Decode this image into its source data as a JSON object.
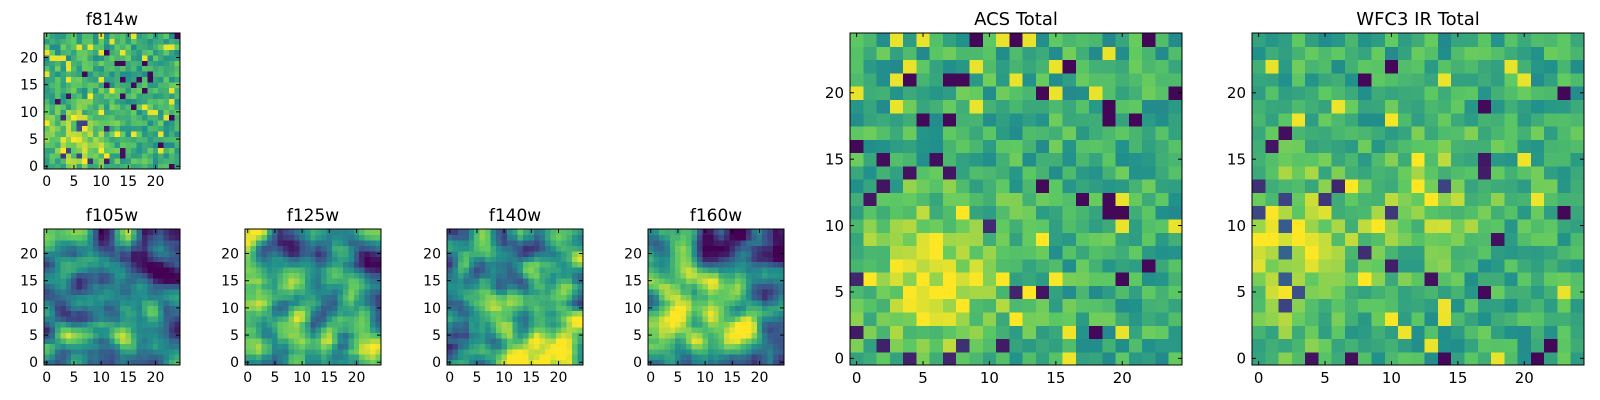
{
  "figure_name": "viridis-pixel-stamps",
  "colormap": [
    "#440154",
    "#3b528b",
    "#21918c",
    "#5ec962",
    "#fde725"
  ],
  "chart_data": [
    {
      "type": "heatmap",
      "title": "f814w",
      "grid_size": 25,
      "x_ticks": [
        "0",
        "5",
        "10",
        "15",
        "20"
      ],
      "y_ticks": [
        "0",
        "5",
        "10",
        "15",
        "20"
      ],
      "xlim": [
        0,
        25
      ],
      "ylim": [
        0,
        25
      ],
      "value_range": [
        0,
        1
      ],
      "texture": "noisy",
      "seed": 11,
      "blobs": [
        {
          "x": 6,
          "y": 5,
          "r": 4,
          "amp": 0.25
        }
      ]
    },
    {
      "type": "heatmap",
      "title": "f105w",
      "grid_size": 25,
      "x_ticks": [
        "0",
        "5",
        "10",
        "15",
        "20"
      ],
      "y_ticks": [
        "0",
        "5",
        "10",
        "15",
        "20"
      ],
      "xlim": [
        0,
        25
      ],
      "ylim": [
        0,
        25
      ],
      "value_range": [
        0,
        1
      ],
      "texture": "smooth",
      "seed": 23,
      "blobs": [
        {
          "x": 10,
          "y": 6,
          "r": 6,
          "amp": 0.2
        },
        {
          "x": 19,
          "y": 20,
          "r": 4,
          "amp": -0.25
        }
      ]
    },
    {
      "type": "heatmap",
      "title": "f125w",
      "grid_size": 25,
      "x_ticks": [
        "0",
        "5",
        "10",
        "15",
        "20"
      ],
      "y_ticks": [
        "0",
        "5",
        "10",
        "15",
        "20"
      ],
      "xlim": [
        0,
        25
      ],
      "ylim": [
        0,
        25
      ],
      "value_range": [
        0,
        1
      ],
      "texture": "smooth",
      "seed": 37,
      "blobs": [
        {
          "x": 8,
          "y": 3,
          "r": 5,
          "amp": 0.25
        },
        {
          "x": 20,
          "y": 3,
          "r": 4,
          "amp": 0.2
        }
      ]
    },
    {
      "type": "heatmap",
      "title": "f140w",
      "grid_size": 25,
      "x_ticks": [
        "0",
        "5",
        "10",
        "15",
        "20"
      ],
      "y_ticks": [
        "0",
        "5",
        "10",
        "15",
        "20"
      ],
      "xlim": [
        0,
        25
      ],
      "ylim": [
        0,
        25
      ],
      "value_range": [
        0,
        1
      ],
      "texture": "smooth",
      "seed": 41,
      "blobs": [
        {
          "x": 12,
          "y": 6,
          "r": 7,
          "amp": 0.3
        },
        {
          "x": 20,
          "y": 4,
          "r": 5,
          "amp": 0.25
        }
      ]
    },
    {
      "type": "heatmap",
      "title": "f160w",
      "grid_size": 25,
      "x_ticks": [
        "0",
        "5",
        "10",
        "15",
        "20"
      ],
      "y_ticks": [
        "0",
        "5",
        "10",
        "15",
        "20"
      ],
      "xlim": [
        0,
        25
      ],
      "ylim": [
        0,
        25
      ],
      "value_range": [
        0,
        1
      ],
      "texture": "smooth",
      "seed": 53,
      "blobs": [
        {
          "x": 13,
          "y": 8,
          "r": 7,
          "amp": 0.3
        },
        {
          "x": 18,
          "y": 21,
          "r": 5,
          "amp": -0.3
        }
      ]
    },
    {
      "type": "heatmap",
      "title": "ACS Total",
      "grid_size": 25,
      "x_ticks": [
        "0",
        "5",
        "10",
        "15",
        "20"
      ],
      "y_ticks": [
        "0",
        "5",
        "10",
        "15",
        "20"
      ],
      "xlim": [
        0,
        25
      ],
      "ylim": [
        0,
        25
      ],
      "value_range": [
        0,
        1
      ],
      "texture": "noisy",
      "seed": 67,
      "blobs": [
        {
          "x": 6,
          "y": 6,
          "r": 4,
          "amp": 0.3
        }
      ]
    },
    {
      "type": "heatmap",
      "title": "WFC3 IR Total",
      "grid_size": 25,
      "x_ticks": [
        "0",
        "5",
        "10",
        "15",
        "20"
      ],
      "y_ticks": [
        "0",
        "5",
        "10",
        "15",
        "20"
      ],
      "xlim": [
        0,
        25
      ],
      "ylim": [
        0,
        25
      ],
      "value_range": [
        0,
        1
      ],
      "texture": "noisy",
      "seed": 79,
      "blobs": [
        {
          "x": 2,
          "y": 8,
          "r": 4,
          "amp": 0.3
        },
        {
          "x": 13,
          "y": 12,
          "r": 3,
          "amp": 0.2
        }
      ]
    }
  ]
}
